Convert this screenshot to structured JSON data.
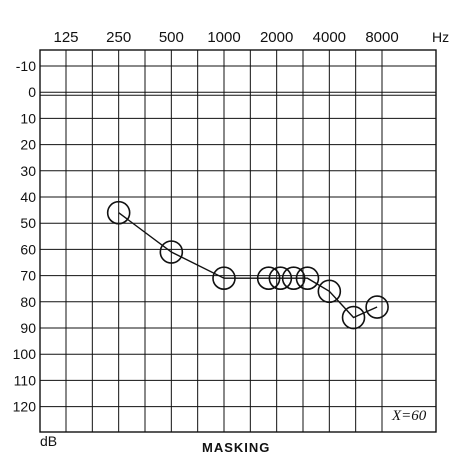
{
  "chart_data": {
    "type": "line",
    "title": "",
    "x_unit": "Hz",
    "y_unit": "dB",
    "x_ticks": [
      "125",
      "250",
      "500",
      "1000",
      "2000",
      "4000",
      "8000"
    ],
    "y_ticks": [
      "-10",
      "0",
      "10",
      "20",
      "30",
      "40",
      "50",
      "60",
      "70",
      "80",
      "90",
      "100",
      "110",
      "120"
    ],
    "ylim": [
      -10,
      120
    ],
    "y_inverted": true,
    "x_scale": "log2",
    "grid": true,
    "footer": "MASKING",
    "annotation": "X=60",
    "series": [
      {
        "marker": "circle",
        "points": [
          {
            "x": 250,
            "y": 46
          },
          {
            "x": 500,
            "y": 61
          },
          {
            "x": 1000,
            "y": 71
          },
          {
            "x": 1800,
            "y": 71
          },
          {
            "x": 2100,
            "y": 71
          },
          {
            "x": 2500,
            "y": 71
          },
          {
            "x": 3000,
            "y": 71
          },
          {
            "x": 4000,
            "y": 76
          },
          {
            "x": 5500,
            "y": 86
          },
          {
            "x": 7500,
            "y": 82
          }
        ]
      }
    ]
  }
}
